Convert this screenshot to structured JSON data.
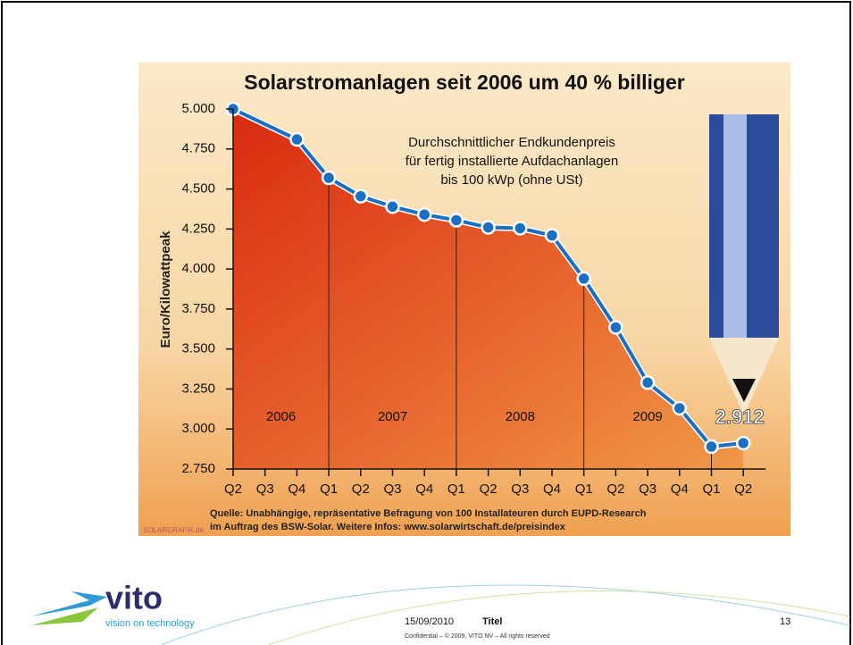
{
  "chart_data": {
    "type": "line",
    "title": "Solarstromanlagen seit 2006 um 40 % billiger",
    "subtitle": [
      "Durchschnittlicher Endkundenpreis",
      "für fertig installierte Aufdachanlagen",
      "bis 100 kWp (ohne USt)"
    ],
    "y_label": "Euro/Kilowattpeak",
    "categories": [
      "Q2",
      "Q3",
      "Q4",
      "Q1",
      "Q2",
      "Q3",
      "Q4",
      "Q1",
      "Q2",
      "Q3",
      "Q4",
      "Q1",
      "Q2",
      "Q3",
      "Q4",
      "Q1",
      "Q2"
    ],
    "years": [
      "2006",
      "2007",
      "2008",
      "2009"
    ],
    "series": [
      {
        "name": "Endkundenpreis",
        "color": "#1a6fc4",
        "values": [
          5000,
          null,
          4810,
          4570,
          4455,
          4390,
          4340,
          4305,
          4260,
          4255,
          4210,
          3940,
          3635,
          3290,
          3130,
          2890,
          2912
        ],
        "value_labels": [
          null,
          null,
          null,
          null,
          null,
          null,
          null,
          null,
          null,
          null,
          null,
          null,
          null,
          null,
          null,
          null,
          "2.912"
        ]
      }
    ],
    "ylim": [
      2750,
      5000
    ],
    "yticks": [
      {
        "value": 2750,
        "label": "2.750"
      },
      {
        "value": 3000,
        "label": "3.000"
      },
      {
        "value": 3250,
        "label": "3.250"
      },
      {
        "value": 3500,
        "label": "3.500"
      },
      {
        "value": 3750,
        "label": "3.750"
      },
      {
        "value": 4000,
        "label": "4.000"
      },
      {
        "value": 4250,
        "label": "4.250"
      },
      {
        "value": 4500,
        "label": "4.500"
      },
      {
        "value": 4750,
        "label": "4.750"
      },
      {
        "value": 5000,
        "label": "5.000"
      }
    ],
    "source": [
      "Quelle: Unabhängige, repräsentative Befragung von 100 Installateuren durch EUPD-Research",
      "im Auftrag des BSW-Solar. Weitere Infos: www.solarwirtschaft.de/preisindex"
    ],
    "credit": "SOLARGRAFIK.de"
  },
  "slide": {
    "logo": "vito",
    "tagline": "vision on technology",
    "date": "15/09/2010",
    "title": "Titel",
    "page": "13",
    "confidential": "Confidential – © 2009, VITO NV – All rights reserved"
  }
}
